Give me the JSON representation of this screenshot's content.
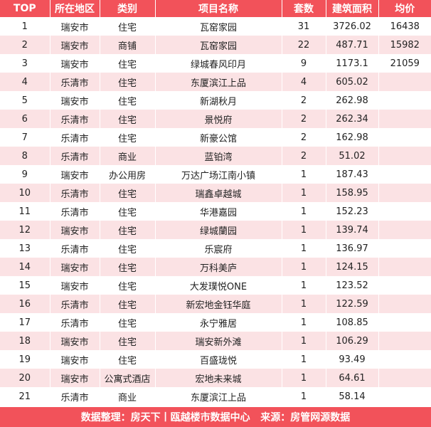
{
  "headers": [
    "TOP",
    "所在地区",
    "类别",
    "项目名称",
    "套数",
    "建筑面积",
    "均价"
  ],
  "rows": [
    [
      "1",
      "瑞安市",
      "住宅",
      "瓦窑家园",
      "31",
      "3726.02",
      "16438"
    ],
    [
      "2",
      "瑞安市",
      "商铺",
      "瓦窑家园",
      "22",
      "487.71",
      "15982"
    ],
    [
      "3",
      "瑞安市",
      "住宅",
      "绿城春风印月",
      "9",
      "1173.1",
      "21059"
    ],
    [
      "4",
      "乐清市",
      "住宅",
      "东厦滨江上品",
      "4",
      "605.02",
      ""
    ],
    [
      "5",
      "瑞安市",
      "住宅",
      "新湖秋月",
      "2",
      "262.98",
      ""
    ],
    [
      "6",
      "乐清市",
      "住宅",
      "景悦府",
      "2",
      "262.34",
      ""
    ],
    [
      "7",
      "乐清市",
      "住宅",
      "新豪公馆",
      "2",
      "162.98",
      ""
    ],
    [
      "8",
      "乐清市",
      "商业",
      "蓝铂湾",
      "2",
      "51.02",
      ""
    ],
    [
      "9",
      "瑞安市",
      "办公用房",
      "万达广场江南小镇",
      "1",
      "187.43",
      ""
    ],
    [
      "10",
      "乐清市",
      "住宅",
      "瑞鑫卓越城",
      "1",
      "158.95",
      ""
    ],
    [
      "11",
      "乐清市",
      "住宅",
      "华港嘉园",
      "1",
      "152.23",
      ""
    ],
    [
      "12",
      "瑞安市",
      "住宅",
      "绿城蘭园",
      "1",
      "139.74",
      ""
    ],
    [
      "13",
      "乐清市",
      "住宅",
      "乐宸府",
      "1",
      "136.97",
      ""
    ],
    [
      "14",
      "瑞安市",
      "住宅",
      "万科美庐",
      "1",
      "124.15",
      ""
    ],
    [
      "15",
      "瑞安市",
      "住宅",
      "大发璞悦ONE",
      "1",
      "123.52",
      ""
    ],
    [
      "16",
      "乐清市",
      "住宅",
      "新宏地金钰华庭",
      "1",
      "122.59",
      ""
    ],
    [
      "17",
      "乐清市",
      "住宅",
      "永宁雅居",
      "1",
      "108.85",
      ""
    ],
    [
      "18",
      "瑞安市",
      "住宅",
      "瑞安新外滩",
      "1",
      "106.29",
      ""
    ],
    [
      "19",
      "瑞安市",
      "住宅",
      "百盛珑悦",
      "1",
      "93.49",
      ""
    ],
    [
      "20",
      "瑞安市",
      "公寓式酒店",
      "宏地未来城",
      "1",
      "64.61",
      ""
    ],
    [
      "21",
      "乐清市",
      "商业",
      "东厦滨江上品",
      "1",
      "58.14",
      ""
    ]
  ],
  "footer": "数据整理：房天下丨瓯越楼市数据中心   来源：房管网源数据",
  "colors": {
    "header_bg": "#f2525a",
    "stripe_bg": "#fbe2e4",
    "header_text": "#ffffff"
  }
}
